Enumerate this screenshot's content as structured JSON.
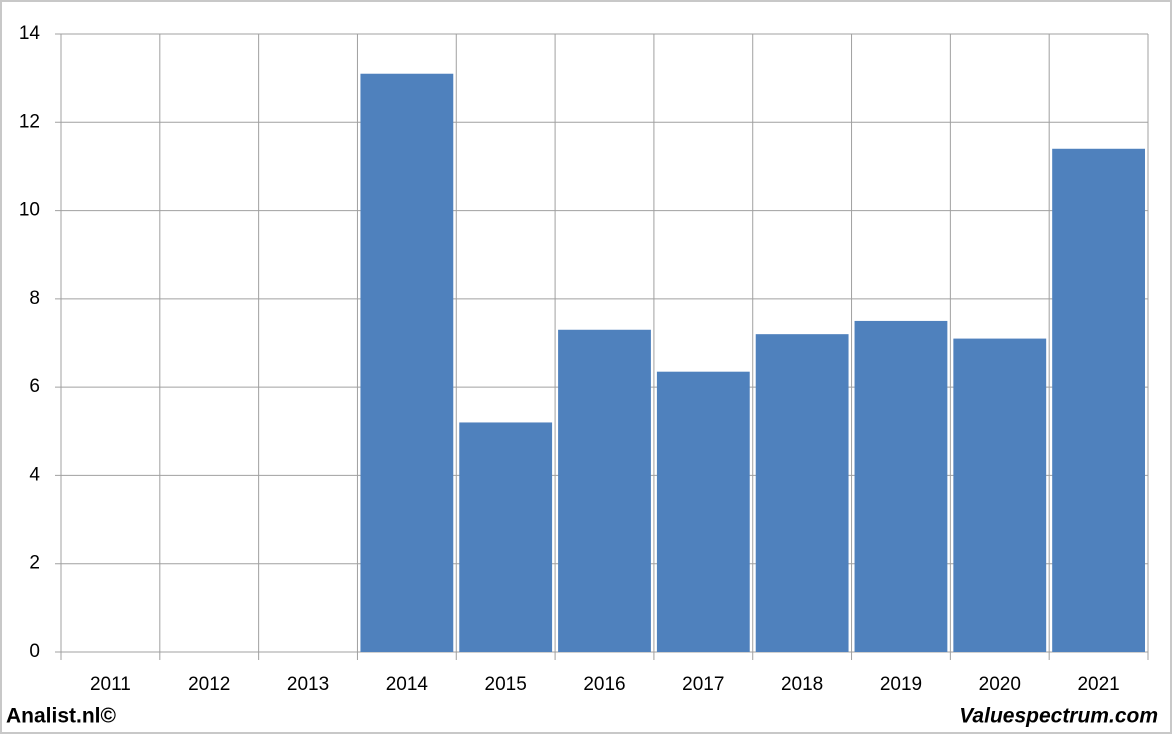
{
  "chart_data": {
    "type": "bar",
    "categories": [
      "2011",
      "2012",
      "2013",
      "2014",
      "2015",
      "2016",
      "2017",
      "2018",
      "2019",
      "2020",
      "2021"
    ],
    "values": [
      null,
      null,
      null,
      13.1,
      5.2,
      7.3,
      6.35,
      7.2,
      7.5,
      7.1,
      11.4
    ],
    "color": "#4f81bd",
    "ylim": [
      0,
      14
    ],
    "yticks": [
      0,
      2,
      4,
      6,
      8,
      10,
      12,
      14
    ],
    "grid": true,
    "credits": [
      "Analist.nl©",
      "Valuespectrum.com"
    ]
  }
}
